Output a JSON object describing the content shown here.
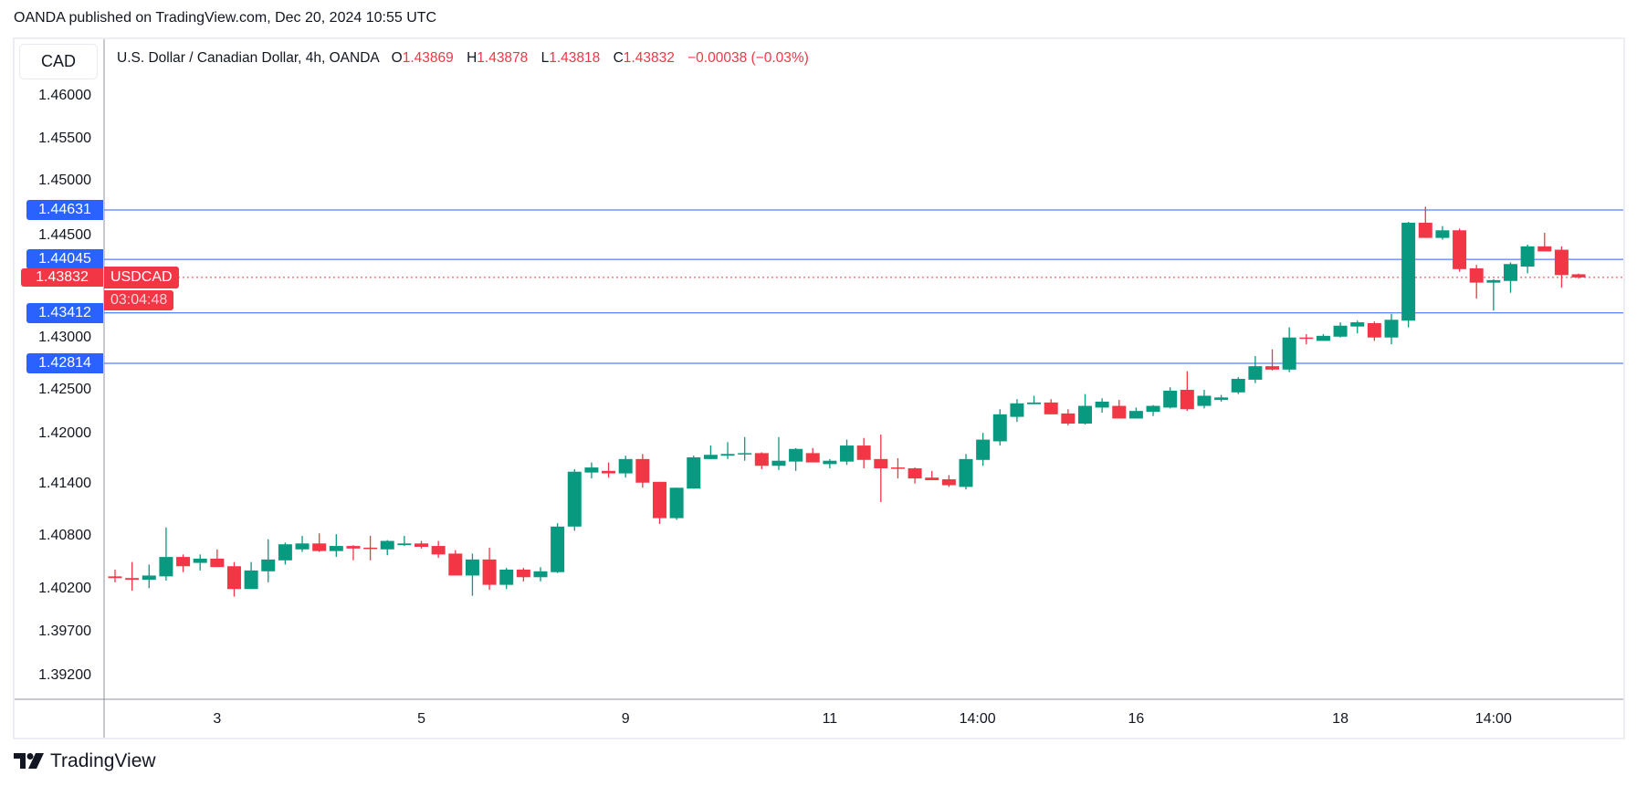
{
  "header": {
    "published": "OANDA published on TradingView.com, Dec 20, 2024 10:55 UTC"
  },
  "currency_button": "CAD",
  "legend": {
    "title": "U.S. Dollar / Canadian Dollar, 4h, OANDA",
    "o_label": "O",
    "o": "1.43869",
    "h_label": "H",
    "h": "1.43878",
    "l_label": "L",
    "l": "1.43818",
    "c_label": "C",
    "c": "1.43832",
    "change": "−0.00038 (−0.03%)"
  },
  "current": {
    "price": "1.43832",
    "countdown": "03:04:48",
    "symbol": "USDCAD",
    "value": 1.43832
  },
  "branding": {
    "logo_text": "TradingView"
  },
  "colors": {
    "up": "#089981",
    "down": "#f23645",
    "line": "#2962ff"
  },
  "chart_data": {
    "type": "candlestick",
    "title": "U.S. Dollar / Canadian Dollar, 4h, OANDA",
    "y_tick_labels": [
      "1.46000",
      "1.45500",
      "1.45000",
      "1.44500",
      "1.43000",
      "1.42500",
      "1.42000",
      "1.41400",
      "1.40800",
      "1.40200",
      "1.39700",
      "1.39200"
    ],
    "x_tick_labels": [
      {
        "label": "3",
        "index": 6
      },
      {
        "label": "5",
        "index": 18
      },
      {
        "label": "9",
        "index": 30
      },
      {
        "label": "11",
        "index": 42
      },
      {
        "label": "14:00",
        "index": 51
      },
      {
        "label": "16",
        "index": 60
      },
      {
        "label": "18",
        "index": 72
      },
      {
        "label": "14:00",
        "index": 81
      }
    ],
    "horizontal_levels": [
      {
        "value": 1.44631,
        "label": "1.44631"
      },
      {
        "value": 1.44045,
        "label": "1.44045"
      },
      {
        "value": 1.43412,
        "label": "1.43412"
      },
      {
        "value": 1.42814,
        "label": "1.42814"
      }
    ],
    "ohlc": [
      [
        1.4029,
        1.4037,
        1.4022,
        1.4027
      ],
      [
        1.4027,
        1.4046,
        1.4012,
        1.4025
      ],
      [
        1.4025,
        1.4043,
        1.4015,
        1.403
      ],
      [
        1.4029,
        1.4087,
        1.4024,
        1.4052
      ],
      [
        1.4052,
        1.4055,
        1.4034,
        1.4041
      ],
      [
        1.4045,
        1.4055,
        1.4036,
        1.405
      ],
      [
        1.405,
        1.4061,
        1.404,
        1.404
      ],
      [
        1.4041,
        1.4046,
        1.4005,
        1.4014
      ],
      [
        1.4014,
        1.4046,
        1.4014,
        1.4036
      ],
      [
        1.4035,
        1.4073,
        1.4022,
        1.4049
      ],
      [
        1.4048,
        1.4069,
        1.4043,
        1.4067
      ],
      [
        1.4061,
        1.4077,
        1.4058,
        1.4068
      ],
      [
        1.4068,
        1.408,
        1.4058,
        1.4059
      ],
      [
        1.4059,
        1.4079,
        1.4052,
        1.4065
      ],
      [
        1.4065,
        1.4066,
        1.4048,
        1.4062
      ],
      [
        1.4063,
        1.4077,
        1.4048,
        1.4062
      ],
      [
        1.4061,
        1.4072,
        1.4054,
        1.4071
      ],
      [
        1.4066,
        1.4077,
        1.4065,
        1.4068
      ],
      [
        1.4068,
        1.4071,
        1.4062,
        1.4064
      ],
      [
        1.4065,
        1.4071,
        1.4051,
        1.4055
      ],
      [
        1.4056,
        1.406,
        1.403,
        1.403
      ],
      [
        1.403,
        1.4056,
        1.4006,
        1.4049
      ],
      [
        1.4049,
        1.4063,
        1.4013,
        1.4019
      ],
      [
        1.4019,
        1.4039,
        1.4014,
        1.4037
      ],
      [
        1.4037,
        1.4039,
        1.4023,
        1.4028
      ],
      [
        1.4028,
        1.404,
        1.4023,
        1.4035
      ],
      [
        1.4034,
        1.4092,
        1.4033,
        1.4088
      ],
      [
        1.4088,
        1.4156,
        1.4083,
        1.4153
      ],
      [
        1.4152,
        1.4164,
        1.4145,
        1.4158
      ],
      [
        1.4154,
        1.4164,
        1.4146,
        1.4151
      ],
      [
        1.4151,
        1.4172,
        1.4146,
        1.4168
      ],
      [
        1.4168,
        1.4174,
        1.4134,
        1.414
      ],
      [
        1.4141,
        1.4141,
        1.4091,
        1.4098
      ],
      [
        1.4098,
        1.4134,
        1.4096,
        1.4134
      ],
      [
        1.4133,
        1.4172,
        1.4133,
        1.417
      ],
      [
        1.4168,
        1.4184,
        1.4168,
        1.4173
      ],
      [
        1.4172,
        1.4188,
        1.4168,
        1.4174
      ],
      [
        1.4174,
        1.4194,
        1.4166,
        1.4175
      ],
      [
        1.4175,
        1.4176,
        1.4156,
        1.416
      ],
      [
        1.416,
        1.4194,
        1.4155,
        1.4166
      ],
      [
        1.4165,
        1.4181,
        1.4154,
        1.418
      ],
      [
        1.4175,
        1.4181,
        1.4164,
        1.4164
      ],
      [
        1.4162,
        1.4168,
        1.4157,
        1.4166
      ],
      [
        1.4165,
        1.4191,
        1.4161,
        1.4184
      ],
      [
        1.4184,
        1.4193,
        1.4157,
        1.4167
      ],
      [
        1.4168,
        1.4197,
        1.4117,
        1.4157
      ],
      [
        1.4158,
        1.4169,
        1.4145,
        1.4157
      ],
      [
        1.4157,
        1.4158,
        1.4139,
        1.4145
      ],
      [
        1.4146,
        1.4154,
        1.4143,
        1.4143
      ],
      [
        1.4144,
        1.4149,
        1.4135,
        1.4137
      ],
      [
        1.4135,
        1.4174,
        1.4132,
        1.4168
      ],
      [
        1.4167,
        1.4199,
        1.416,
        1.4191
      ],
      [
        1.4189,
        1.4227,
        1.4184,
        1.4221
      ],
      [
        1.4218,
        1.4239,
        1.4212,
        1.4234
      ],
      [
        1.4233,
        1.4243,
        1.4233,
        1.4235
      ],
      [
        1.4235,
        1.4239,
        1.4221,
        1.4221
      ],
      [
        1.4222,
        1.4227,
        1.4208,
        1.421
      ],
      [
        1.421,
        1.4245,
        1.4209,
        1.4231
      ],
      [
        1.4229,
        1.424,
        1.4223,
        1.4236
      ],
      [
        1.4231,
        1.4238,
        1.4216,
        1.4216
      ],
      [
        1.4216,
        1.4229,
        1.4216,
        1.4225
      ],
      [
        1.4224,
        1.4232,
        1.4219,
        1.4231
      ],
      [
        1.4229,
        1.4253,
        1.4228,
        1.4249
      ],
      [
        1.425,
        1.4272,
        1.4225,
        1.4227
      ],
      [
        1.4231,
        1.425,
        1.4228,
        1.4243
      ],
      [
        1.4238,
        1.4244,
        1.4236,
        1.4241
      ],
      [
        1.4247,
        1.4265,
        1.4245,
        1.4263
      ],
      [
        1.4262,
        1.429,
        1.4258,
        1.4278
      ],
      [
        1.4278,
        1.4298,
        1.4273,
        1.4274
      ],
      [
        1.4274,
        1.4324,
        1.4271,
        1.4312
      ],
      [
        1.4312,
        1.4316,
        1.4304,
        1.4311
      ],
      [
        1.4308,
        1.4316,
        1.4308,
        1.4314
      ],
      [
        1.4313,
        1.433,
        1.4312,
        1.4326
      ],
      [
        1.4325,
        1.4332,
        1.4317,
        1.433
      ],
      [
        1.4329,
        1.4331,
        1.4308,
        1.4312
      ],
      [
        1.4312,
        1.434,
        1.4304,
        1.4333
      ],
      [
        1.4332,
        1.4449,
        1.4324,
        1.4448
      ],
      [
        1.4448,
        1.4467,
        1.443,
        1.443
      ],
      [
        1.443,
        1.4444,
        1.4428,
        1.4439
      ],
      [
        1.4439,
        1.4441,
        1.439,
        1.4393
      ],
      [
        1.4394,
        1.4398,
        1.4358,
        1.4377
      ],
      [
        1.4377,
        1.4381,
        1.4344,
        1.438
      ],
      [
        1.4379,
        1.4401,
        1.4365,
        1.4399
      ],
      [
        1.4396,
        1.4422,
        1.4388,
        1.442
      ],
      [
        1.442,
        1.4436,
        1.4414,
        1.4414
      ],
      [
        1.4416,
        1.442,
        1.4371,
        1.4386
      ],
      [
        1.43869,
        1.43878,
        1.43818,
        1.43832
      ]
    ]
  }
}
